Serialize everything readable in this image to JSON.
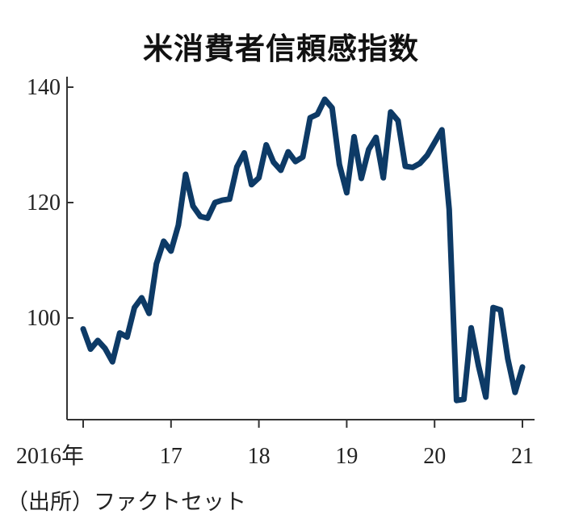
{
  "chart_data": {
    "type": "line",
    "title": "米消費者信頼感指数",
    "source": "（出所）ファクトセット",
    "x_tick_labels": [
      "2016年",
      "17",
      "18",
      "19",
      "20",
      "21"
    ],
    "y_ticks": [
      100,
      120,
      140
    ],
    "y_tick_labels": [
      "100",
      "120",
      "140"
    ],
    "ylim": [
      84,
      142
    ],
    "x_start": "2016-01",
    "x_frequency": "monthly",
    "grid": false,
    "line_color": "#0d3a66",
    "series": [
      {
        "values": [
          98.1,
          94.6,
          96.1,
          94.7,
          92.4,
          97.4,
          96.7,
          101.8,
          103.5,
          100.8,
          109.4,
          113.3,
          111.6,
          116.1,
          124.9,
          119.4,
          117.6,
          117.3,
          120.0,
          120.4,
          120.6,
          126.2,
          128.6,
          123.1,
          124.3,
          130.0,
          127.0,
          125.6,
          128.8,
          127.1,
          127.9,
          134.7,
          135.3,
          137.9,
          136.4,
          126.6,
          121.7,
          131.4,
          124.2,
          129.2,
          131.3,
          124.3,
          135.7,
          134.2,
          126.3,
          126.1,
          126.8,
          128.2,
          130.4,
          132.6,
          118.8,
          85.7,
          85.9,
          98.3,
          91.7,
          86.3,
          101.8,
          101.4,
          92.9,
          87.1,
          91.5
        ]
      }
    ]
  }
}
